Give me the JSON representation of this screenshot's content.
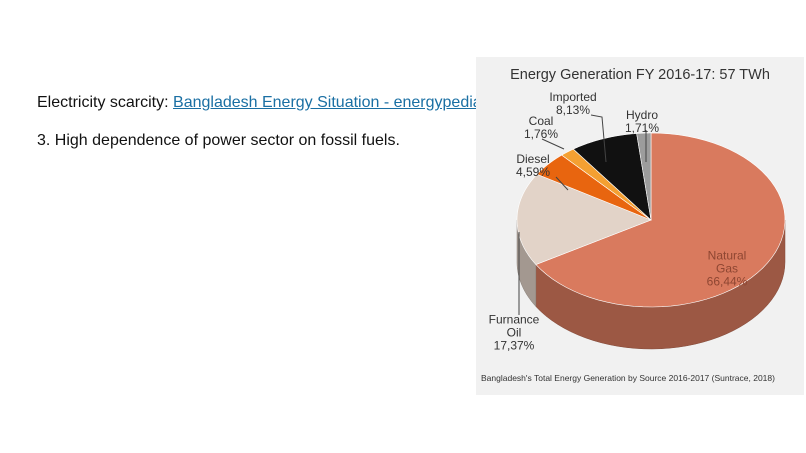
{
  "slide": {
    "line1_prefix": "Electricity scarcity: ",
    "line1_link": "Bangladesh Energy Situation - energypedia",
    "line2": "3. High dependence of power sector on fossil fuels."
  },
  "chart_data": {
    "type": "pie",
    "title": "Energy Generation FY 2016-17: 57 TWh",
    "caption": "Bangladesh's Total Energy Generation by Source 2016-2017 (Suntrace, 2018)",
    "categories": [
      "Natural Gas",
      "Furnance Oil",
      "Diesel",
      "Coal",
      "Imported",
      "Hydro"
    ],
    "values": [
      66.44,
      17.37,
      4.59,
      1.76,
      8.13,
      1.71
    ],
    "value_labels": [
      "66,44%",
      "17,37%",
      "4,59%",
      "1,76%",
      "8,13%",
      "1,71%"
    ],
    "colors": [
      "#d97a5e",
      "#e2d3c8",
      "#e8650f",
      "#f4a032",
      "#111111",
      "#9c9c9c"
    ]
  }
}
